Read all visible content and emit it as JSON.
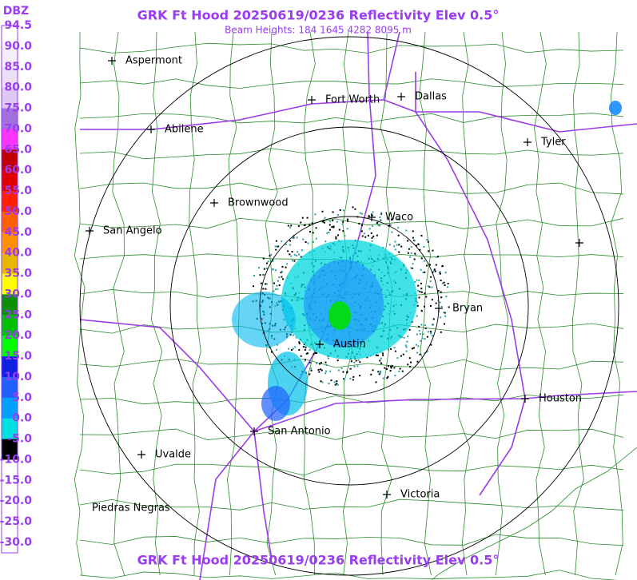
{
  "header": {
    "title": "GRK Ft Hood 20250619/0236 Reflectivity Elev 0.5°",
    "subtitle": "Beam Heights: 184 1645 4282 8095 m",
    "footer": "GRK Ft Hood 20250619/0236 Reflectivity Elev 0.5°"
  },
  "legend": {
    "unit": "DBZ",
    "labels": [
      "94.5",
      "90.0",
      "85.0",
      "80.0",
      "75.0",
      "70.0",
      "65.0",
      "60.0",
      "55.0",
      "50.0",
      "45.0",
      "40.0",
      "35.0",
      "30.0",
      "25.0",
      "20.0",
      "15.0",
      "10.0",
      "5.0",
      "0.0",
      "-5.0",
      "-10.0",
      "-15.0",
      "-20.0",
      "-25.0",
      "-30.0"
    ],
    "colors": [
      "#ffffff",
      "#f4eefb",
      "#ece0f7",
      "#dcc8f2",
      "#a070e0",
      "#ff33ff",
      "#c00000",
      "#e00000",
      "#ff2000",
      "#ff6000",
      "#ff9000",
      "#e8b800",
      "#ffff00",
      "#0a9000",
      "#00c000",
      "#00ff00",
      "#1020e0",
      "#2060ff",
      "#00a0ff",
      "#00e0e0",
      "#000000",
      "#ffffff",
      "#ffffff",
      "#ffffff",
      "#ffffff"
    ]
  },
  "cities": [
    "Aspermont",
    "Fort Worth",
    "Dallas",
    "Abilene",
    "Tyler",
    "Brownwood",
    "Waco",
    "San Angelo",
    "Bryan",
    "Austin",
    "Houston",
    "San Antonio",
    "Uvalde",
    "Victoria",
    "Piedras Negras"
  ]
}
